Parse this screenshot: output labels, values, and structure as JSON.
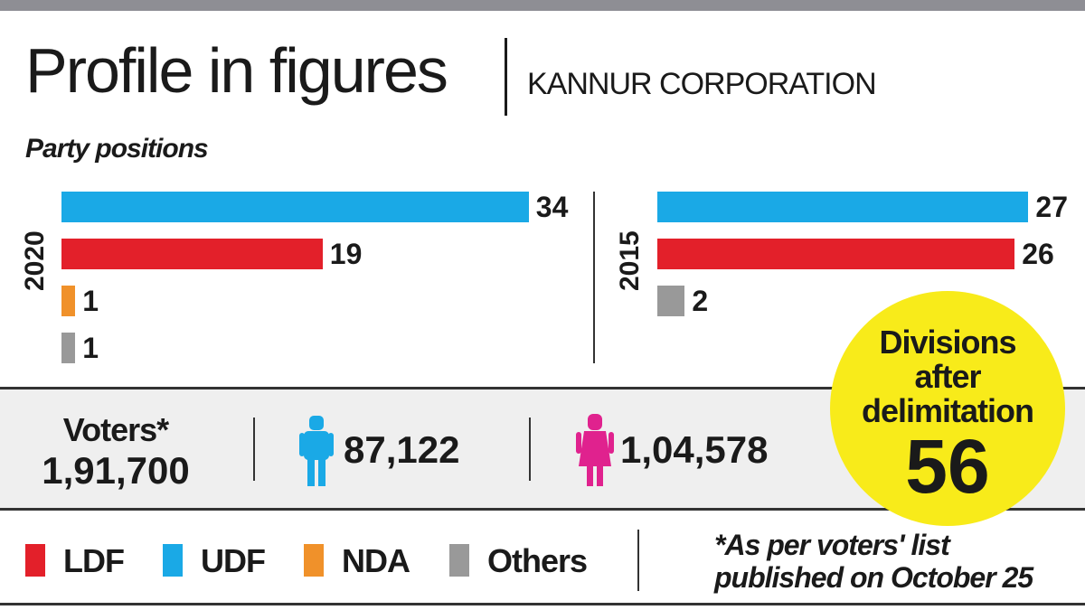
{
  "title": "Profile in figures",
  "subtitle": "KANNUR CORPORATION",
  "section": "Party positions",
  "colors": {
    "LDF": "#e3202a",
    "UDF": "#1aa9e6",
    "NDA": "#f0912a",
    "Others": "#999999",
    "men": "#1aa9e6",
    "women": "#e0228e",
    "circle": "#f8eb1a"
  },
  "chart_data": [
    {
      "type": "bar",
      "title": "2020",
      "categories": [
        "UDF",
        "LDF",
        "NDA",
        "Others"
      ],
      "values": [
        34,
        19,
        1,
        1
      ]
    },
    {
      "type": "bar",
      "title": "2015",
      "categories": [
        "UDF",
        "LDF",
        "Others"
      ],
      "values": [
        27,
        26,
        2
      ]
    }
  ],
  "voters": {
    "label": "Voters*",
    "total": "1,91,700",
    "men": "87,122",
    "women": "1,04,578"
  },
  "divisions": {
    "line1": "Divisions",
    "line2": "after",
    "line3": "delimitation",
    "value": "56"
  },
  "legend": [
    "LDF",
    "UDF",
    "NDA",
    "Others"
  ],
  "note": {
    "line1": "*As per voters' list",
    "line2": "published on October 25"
  }
}
